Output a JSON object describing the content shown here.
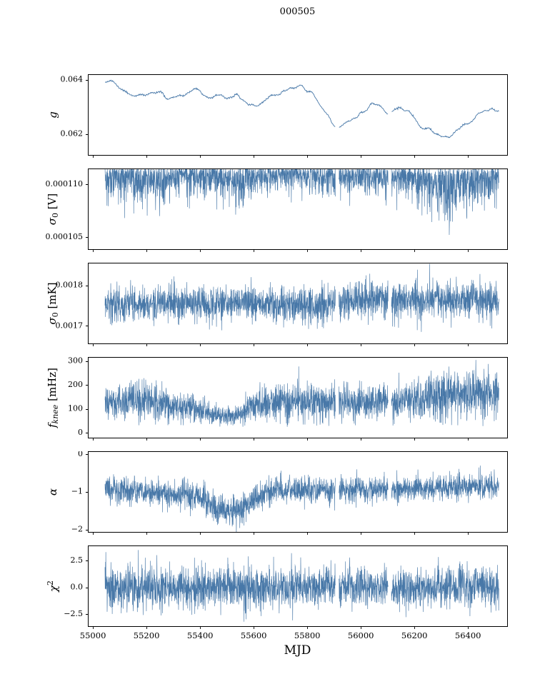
{
  "chart_data": {
    "type": "line",
    "title": "000505",
    "xlabel": "MJD",
    "line_color": "#4878a8",
    "axis_color": "#000000",
    "legend": "none",
    "grid": false,
    "xlim": [
      54981,
      56546
    ],
    "x_start": 55045,
    "x_end": 56515,
    "x_ticks": [
      {
        "v": 55000,
        "l": "55000"
      },
      {
        "v": 55200,
        "l": "55200"
      },
      {
        "v": 55400,
        "l": "55400"
      },
      {
        "v": 55600,
        "l": "55600"
      },
      {
        "v": 55800,
        "l": "55800"
      },
      {
        "v": 56000,
        "l": "56000"
      },
      {
        "v": 56200,
        "l": "56200"
      },
      {
        "v": 56400,
        "l": "56400"
      }
    ],
    "gaps": [
      [
        55905,
        55918
      ],
      [
        56102,
        56114
      ]
    ],
    "panels": [
      {
        "id": "g",
        "style": "smooth",
        "seed": 11,
        "n": 800,
        "ylim": [
          0.0612,
          0.0642
        ],
        "yticks": [
          {
            "v": 0.062,
            "l": "0.062"
          },
          {
            "v": 0.064,
            "l": "0.064"
          }
        ],
        "ylabel_parts": [
          {
            "t": "g",
            "s": "it"
          }
        ],
        "noise": 4.5e-05,
        "jitter": 1.2e-05,
        "control": {
          "x": [
            55045,
            55070,
            55100,
            55130,
            55170,
            55210,
            55240,
            55280,
            55320,
            55360,
            55400,
            55430,
            55460,
            55500,
            55540,
            55580,
            55620,
            55660,
            55700,
            55740,
            55780,
            55820,
            55850,
            55880,
            55910,
            55950,
            55990,
            56030,
            56070,
            56100,
            56140,
            56180,
            56220,
            56260,
            56300,
            56330,
            56360,
            56400,
            56440,
            56480,
            56515
          ],
          "y": [
            0.064,
            0.06395,
            0.0637,
            0.0635,
            0.0634,
            0.06345,
            0.0636,
            0.0633,
            0.06335,
            0.0635,
            0.0636,
            0.0633,
            0.0634,
            0.06335,
            0.0634,
            0.0631,
            0.06305,
            0.0634,
            0.0635,
            0.0637,
            0.0637,
            0.0635,
            0.063,
            0.0626,
            0.0622,
            0.0625,
            0.0626,
            0.063,
            0.0631,
            0.0627,
            0.063,
            0.0628,
            0.0623,
            0.0621,
            0.0619,
            0.0618,
            0.0622,
            0.0624,
            0.0628,
            0.0629,
            0.0629
          ]
        }
      },
      {
        "id": "sigma0_V",
        "style": "hugtop",
        "seed": 22,
        "n": 2400,
        "ylim": [
          0.0001038,
          0.0001115
        ],
        "top": 0.0001116,
        "yticks": [
          {
            "v": 0.000105,
            "l": "0.000105"
          },
          {
            "v": 0.00011,
            "l": "0.000110"
          }
        ],
        "ylabel_parts": [
          {
            "t": "σ",
            "s": "it"
          },
          {
            "t": "0",
            "s": "sub"
          },
          {
            "t": " [V]",
            "s": "rm"
          }
        ],
        "spread": {
          "x": [
            55045,
            55120,
            55200,
            55260,
            55320,
            55380,
            55450,
            55520,
            55570,
            55620,
            55700,
            55760,
            55830,
            55900,
            55960,
            56030,
            56100,
            56170,
            56240,
            56310,
            56360,
            56430,
            56510
          ],
          "y": [
            2.5e-06,
            3.2e-06,
            3.8e-06,
            4e-06,
            2.2e-06,
            2.8e-06,
            3e-06,
            3.4e-06,
            3.8e-06,
            2.6e-06,
            2e-06,
            2.2e-06,
            2.8e-06,
            3.2e-06,
            2.8e-06,
            2.6e-06,
            2.8e-06,
            3e-06,
            4e-06,
            5e-06,
            5.2e-06,
            3.8e-06,
            3e-06
          ]
        }
      },
      {
        "id": "sigma0_mK",
        "style": "band",
        "seed": 33,
        "n": 2400,
        "ylim": [
          0.001655,
          0.001856
        ],
        "yticks": [
          {
            "v": 0.0017,
            "l": "0.0017"
          },
          {
            "v": 0.0018,
            "l": "0.0018"
          }
        ],
        "ylabel_parts": [
          {
            "t": "σ",
            "s": "it"
          },
          {
            "t": "0",
            "s": "sub"
          },
          {
            "t": " [mK]",
            "s": "rm"
          }
        ],
        "mean": {
          "x": [
            55045,
            55300,
            55600,
            55850,
            55900,
            56100,
            56300,
            56515
          ],
          "y": [
            0.001752,
            0.001755,
            0.001755,
            0.001752,
            0.001762,
            0.001762,
            0.001765,
            0.001762
          ]
        },
        "hw": {
          "x": [
            55045,
            55600,
            55900,
            56515
          ],
          "y": [
            4.8e-05,
            4.5e-05,
            5e-05,
            5.2e-05
          ]
        }
      },
      {
        "id": "fknee",
        "style": "band",
        "seed": 44,
        "n": 2400,
        "ylim": [
          -23,
          317
        ],
        "yticks": [
          {
            "v": 0,
            "l": "0"
          },
          {
            "v": 100,
            "l": "100"
          },
          {
            "v": 200,
            "l": "200"
          },
          {
            "v": 300,
            "l": "300"
          }
        ],
        "ylabel_parts": [
          {
            "t": "f",
            "s": "it"
          },
          {
            "t": "knee",
            "s": "subit"
          },
          {
            "t": " [mHz]",
            "s": "rm"
          }
        ],
        "mean": {
          "x": [
            55045,
            55200,
            55300,
            55400,
            55450,
            55520,
            55560,
            55620,
            55700,
            55900,
            56100,
            56200,
            56300,
            56400,
            56515
          ],
          "y": [
            125,
            130,
            115,
            95,
            75,
            70,
            85,
            120,
            130,
            125,
            130,
            140,
            150,
            160,
            160
          ]
        },
        "hw": {
          "x": [
            55045,
            55300,
            55400,
            55450,
            55520,
            55560,
            55650,
            55900,
            56150,
            56250,
            56350,
            56515
          ],
          "y": [
            85,
            80,
            60,
            45,
            40,
            55,
            85,
            85,
            90,
            105,
            115,
            115
          ]
        },
        "clipmin": 25
      },
      {
        "id": "alpha",
        "style": "band",
        "seed": 55,
        "n": 2400,
        "ylim": [
          -2.08,
          0.075
        ],
        "yticks": [
          {
            "v": -2,
            "l": "−2"
          },
          {
            "v": -1,
            "l": "−1"
          },
          {
            "v": 0,
            "l": "0"
          }
        ],
        "ylabel_parts": [
          {
            "t": "α",
            "s": "it"
          }
        ],
        "mean": {
          "x": [
            55045,
            55250,
            55300,
            55350,
            55420,
            55460,
            55540,
            55580,
            55640,
            55700,
            56000,
            56200,
            56515
          ],
          "y": [
            -0.95,
            -1.0,
            -1.15,
            -1.05,
            -1.2,
            -1.5,
            -1.5,
            -1.3,
            -1.05,
            -0.95,
            -0.95,
            -0.9,
            -0.85
          ]
        },
        "hw": {
          "x": [
            55045,
            55400,
            55460,
            55560,
            55640,
            56515
          ],
          "y": [
            0.38,
            0.42,
            0.45,
            0.45,
            0.38,
            0.35
          ]
        }
      },
      {
        "id": "chi2",
        "style": "band",
        "seed": 66,
        "n": 2400,
        "ylim": [
          -3.7,
          3.9
        ],
        "yticks": [
          {
            "v": -2.5,
            "l": "−2.5"
          },
          {
            "v": 0,
            "l": "0.0"
          },
          {
            "v": 2.5,
            "l": "2.5"
          }
        ],
        "ylabel_parts": [
          {
            "t": "χ",
            "s": "it"
          },
          {
            "t": "2",
            "s": "sup"
          }
        ],
        "mean": {
          "x": [
            55045,
            56515
          ],
          "y": [
            0,
            0
          ]
        },
        "hw": {
          "x": [
            55045,
            56515
          ],
          "y": [
            2.1,
            2.1
          ]
        }
      }
    ]
  }
}
